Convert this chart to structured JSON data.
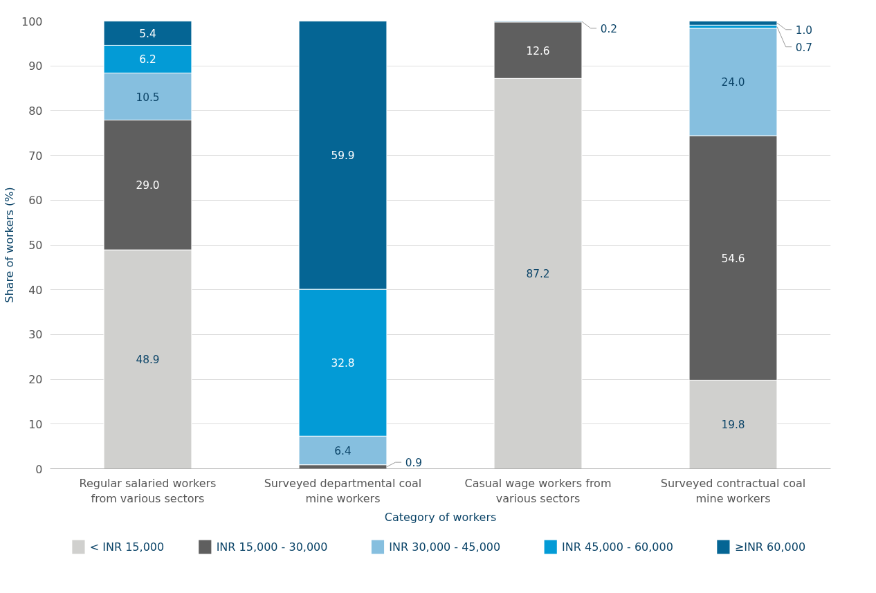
{
  "chart_data": {
    "type": "bar",
    "stacked": true,
    "xlabel": "Category of workers",
    "ylabel": "Share of workers (%)",
    "categories": [
      "Regular salaried workers from various sectors",
      "Surveyed departmental coal mine workers",
      "Casual wage workers from various sectors",
      "Surveyed contractual coal mine workers"
    ],
    "series": [
      {
        "name": "< INR 15,000",
        "color": "#d0d0ce",
        "values": [
          48.9,
          null,
          87.2,
          19.8
        ],
        "value_labels": [
          "48.9",
          null,
          "87.2",
          "19.8"
        ]
      },
      {
        "name": "INR 15,000 - 30,000",
        "color": "#5f5f5f",
        "values": [
          29.0,
          0.9,
          12.6,
          54.6
        ],
        "value_labels": [
          "29.0",
          "0.9",
          "12.6",
          "54.6"
        ]
      },
      {
        "name": "INR 30,000 - 45,000",
        "color": "#86bfdf",
        "values": [
          10.5,
          6.4,
          null,
          24.0
        ],
        "value_labels": [
          "10.5",
          "6.4",
          null,
          "24.0"
        ]
      },
      {
        "name": "INR 45,000 - 60,000",
        "color": "#039bd6",
        "values": [
          6.2,
          32.8,
          null,
          0.7
        ],
        "value_labels": [
          "6.2",
          "32.8",
          null,
          "0.7"
        ]
      },
      {
        "name": "≥INR 60,000",
        "color": "#056594",
        "values": [
          5.4,
          59.9,
          0.2,
          1.0
        ],
        "value_labels": [
          "5.4",
          "59.9",
          "0.2",
          "1.0"
        ]
      }
    ],
    "ylim": [
      0,
      100
    ],
    "yticks": [
      0,
      10,
      20,
      30,
      40,
      50,
      60,
      70,
      80,
      90,
      100
    ],
    "grid": "y",
    "legend": "bottom",
    "data_labels": true
  }
}
